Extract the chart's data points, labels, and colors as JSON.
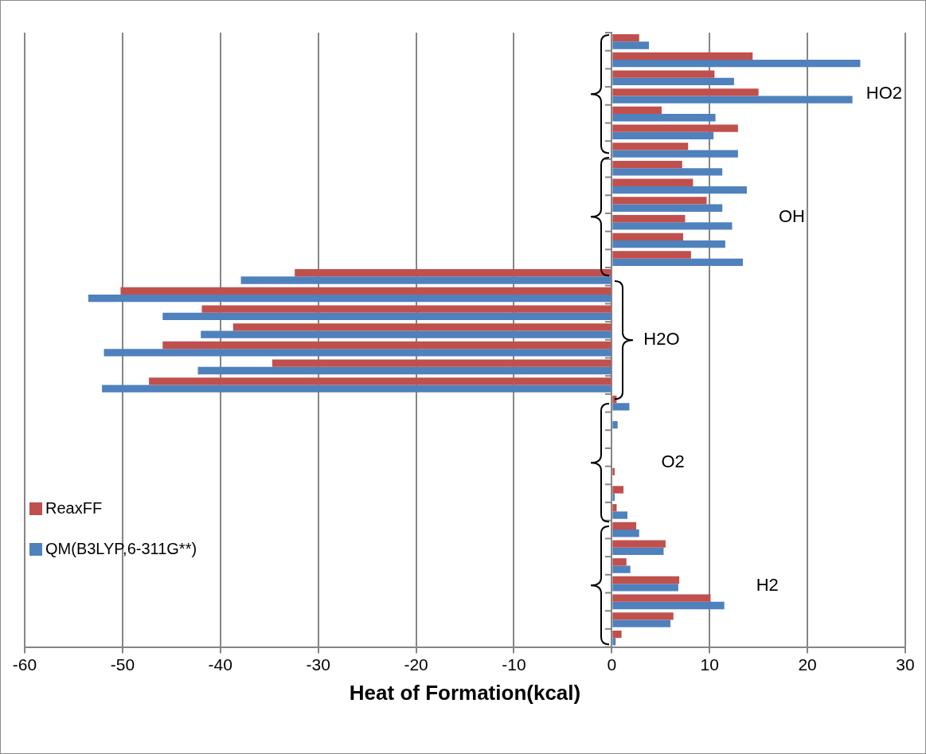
{
  "chart_data": {
    "type": "bar",
    "orientation": "horizontal",
    "xlabel": "Heat of Formation(kcal)",
    "categories": [
      null,
      null,
      null,
      null,
      null,
      null,
      null,
      null,
      null,
      null,
      null,
      null,
      null,
      null,
      null,
      null,
      null,
      null,
      null,
      null,
      null,
      null,
      null,
      null,
      null,
      null,
      null,
      null,
      null,
      null,
      null,
      null,
      null,
      null
    ],
    "series": [
      {
        "name": "ReaxFF",
        "color": "#c0504d",
        "values": [
          2.8,
          14.4,
          10.5,
          15.0,
          5.1,
          12.9,
          7.8,
          7.2,
          8.3,
          9.7,
          7.5,
          7.3,
          8.1,
          -32.4,
          -50.2,
          -41.9,
          -38.7,
          -45.9,
          -34.7,
          -47.3,
          0.5,
          null,
          null,
          null,
          0.3,
          1.2,
          0.5,
          2.5,
          5.5,
          1.5,
          6.9,
          10.1,
          6.3,
          1.0
        ]
      },
      {
        "name": "QM(B3LYP,6-311G**)",
        "color": "#4f81bd",
        "values": [
          3.8,
          25.4,
          12.5,
          24.6,
          10.6,
          10.4,
          12.9,
          11.3,
          13.8,
          11.3,
          12.3,
          11.6,
          13.4,
          -37.9,
          -53.5,
          -45.9,
          -42.0,
          -51.9,
          -42.3,
          -52.1,
          1.8,
          0.6,
          null,
          null,
          null,
          0.3,
          1.6,
          2.8,
          5.3,
          1.9,
          6.8,
          11.5,
          6.0,
          0.4
        ]
      }
    ],
    "xlim": [
      -60,
      30
    ],
    "xticks": [
      -60,
      -50,
      -40,
      -30,
      -20,
      -10,
      0,
      10,
      20,
      30
    ],
    "grid": "x",
    "legend": "bottom left",
    "annotations": [
      "HO2",
      "OH",
      "H2O",
      "O2",
      "H2"
    ]
  }
}
